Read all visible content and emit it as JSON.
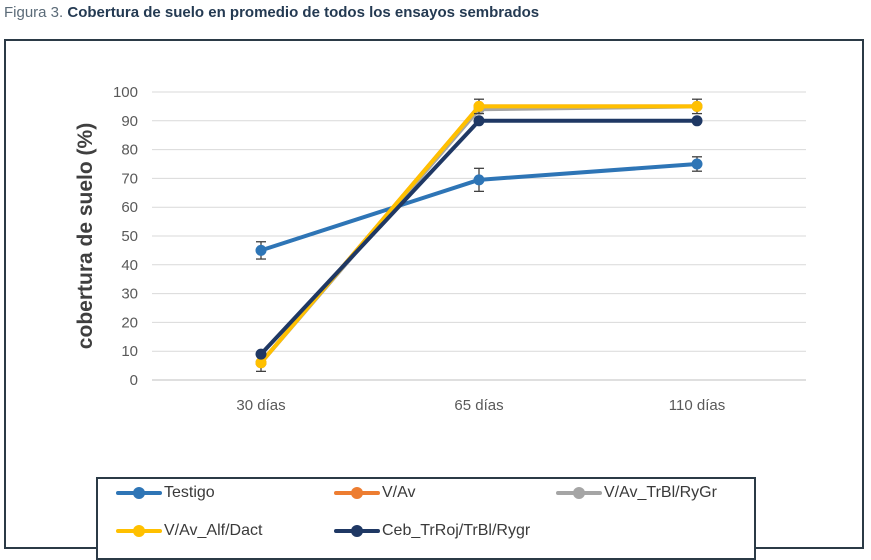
{
  "caption": {
    "prefix": "Figura 3.",
    "title": "Cobertura de suelo en promedio de todos los ensayos sembrados"
  },
  "chart_data": {
    "type": "line",
    "categories": [
      "30 días",
      "65 días",
      "110 días"
    ],
    "xlabel": "",
    "ylabel": "cobertura de suelo (%)",
    "ylim": [
      0,
      100
    ],
    "yticks": [
      0,
      10,
      20,
      30,
      40,
      50,
      60,
      70,
      80,
      90,
      100
    ],
    "grid": true,
    "legend_placement": "bottom",
    "series": [
      {
        "name": "Testigo",
        "color": "#2e75b6",
        "values": [
          45,
          69.5,
          75
        ],
        "errors": [
          3,
          4,
          2.5
        ]
      },
      {
        "name": "V/Av",
        "color": "#ed7d31",
        "values": [
          6,
          95,
          95
        ],
        "errors": [
          0,
          0,
          0
        ]
      },
      {
        "name": "V/Av_TrBl/RyGr",
        "color": "#a5a5a5",
        "values": [
          6,
          94,
          95
        ],
        "errors": [
          0,
          0,
          0
        ]
      },
      {
        "name": "V/Av_Alf/Dact",
        "color": "#ffc000",
        "values": [
          6,
          95,
          95
        ],
        "errors": [
          3,
          2.5,
          2.5
        ]
      },
      {
        "name": "Ceb_TrRoj/TrBl/Rygr",
        "color": "#1f3864",
        "values": [
          9,
          90,
          90
        ],
        "errors": [
          0,
          0,
          0
        ]
      }
    ]
  }
}
